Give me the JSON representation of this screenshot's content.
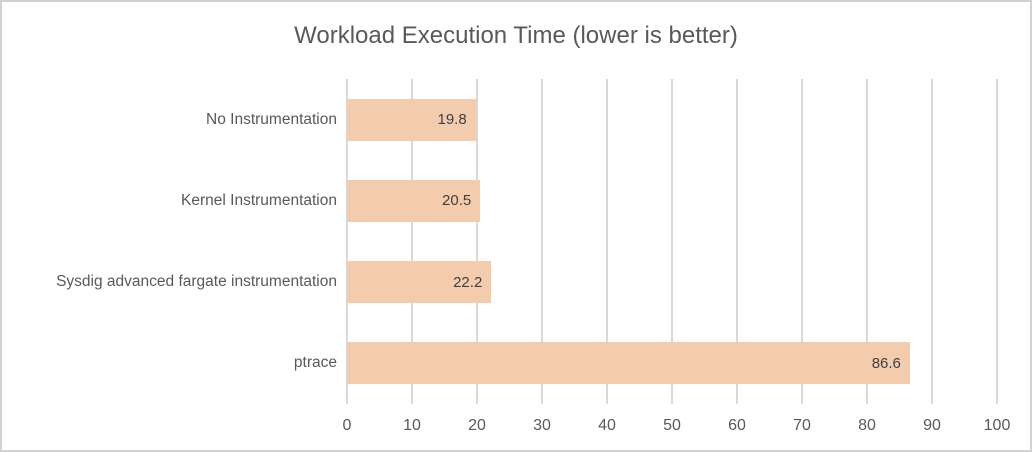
{
  "title": "Workload Execution Time (lower is better)",
  "colors": {
    "bar_fill": "#f3ccad",
    "gridline": "#d9d9d9",
    "title_text": "#595959",
    "axis_text": "#595959",
    "data_label_text": "#3f3f3f",
    "border": "#d2d2d2",
    "background": "#ffffff"
  },
  "chart_data": {
    "type": "bar",
    "orientation": "horizontal",
    "title": "Workload Execution Time (lower is better)",
    "categories": [
      "No Instrumentation",
      "Kernel Instrumentation",
      "Sysdig advanced fargate instrumentation",
      "ptrace"
    ],
    "values": [
      19.8,
      20.5,
      22.2,
      86.6
    ],
    "data_labels": [
      "19.8",
      "20.5",
      "22.2",
      "86.6"
    ],
    "x_ticks": [
      0,
      10,
      20,
      30,
      40,
      50,
      60,
      70,
      80,
      90,
      100
    ],
    "x_tick_labels": [
      "0",
      "10",
      "20",
      "30",
      "40",
      "50",
      "60",
      "70",
      "80",
      "90",
      "100"
    ],
    "xlim": [
      0,
      100
    ],
    "xlabel": "",
    "ylabel": "",
    "grid": "vertical",
    "legend": "none"
  }
}
